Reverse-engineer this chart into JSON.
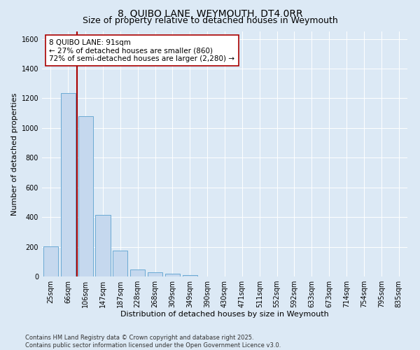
{
  "title": "8, QUIBO LANE, WEYMOUTH, DT4 0RR",
  "subtitle": "Size of property relative to detached houses in Weymouth",
  "xlabel": "Distribution of detached houses by size in Weymouth",
  "ylabel": "Number of detached properties",
  "categories": [
    "25sqm",
    "66sqm",
    "106sqm",
    "147sqm",
    "187sqm",
    "228sqm",
    "268sqm",
    "309sqm",
    "349sqm",
    "390sqm",
    "430sqm",
    "471sqm",
    "511sqm",
    "552sqm",
    "592sqm",
    "633sqm",
    "673sqm",
    "714sqm",
    "754sqm",
    "795sqm",
    "835sqm"
  ],
  "values": [
    205,
    1235,
    1080,
    415,
    175,
    45,
    28,
    18,
    10,
    0,
    0,
    0,
    0,
    0,
    0,
    0,
    0,
    0,
    0,
    0,
    0
  ],
  "bar_color": "#c5d8ee",
  "bar_edgecolor": "#6aaad4",
  "vline_x": 1.5,
  "vline_color": "#aa0000",
  "annotation_line1": "8 QUIBO LANE: 91sqm",
  "annotation_line2": "← 27% of detached houses are smaller (860)",
  "annotation_line3": "72% of semi-detached houses are larger (2,280) →",
  "annotation_box_edgecolor": "#aa0000",
  "annotation_box_facecolor": "#ffffff",
  "ylim": [
    0,
    1650
  ],
  "yticks": [
    0,
    200,
    400,
    600,
    800,
    1000,
    1200,
    1400,
    1600
  ],
  "background_color": "#dce9f5",
  "plot_background": "#dce9f5",
  "footer": "Contains HM Land Registry data © Crown copyright and database right 2025.\nContains public sector information licensed under the Open Government Licence v3.0.",
  "title_fontsize": 10,
  "subtitle_fontsize": 9,
  "xlabel_fontsize": 8,
  "ylabel_fontsize": 8,
  "tick_fontsize": 7,
  "annotation_fontsize": 7.5,
  "footer_fontsize": 6
}
